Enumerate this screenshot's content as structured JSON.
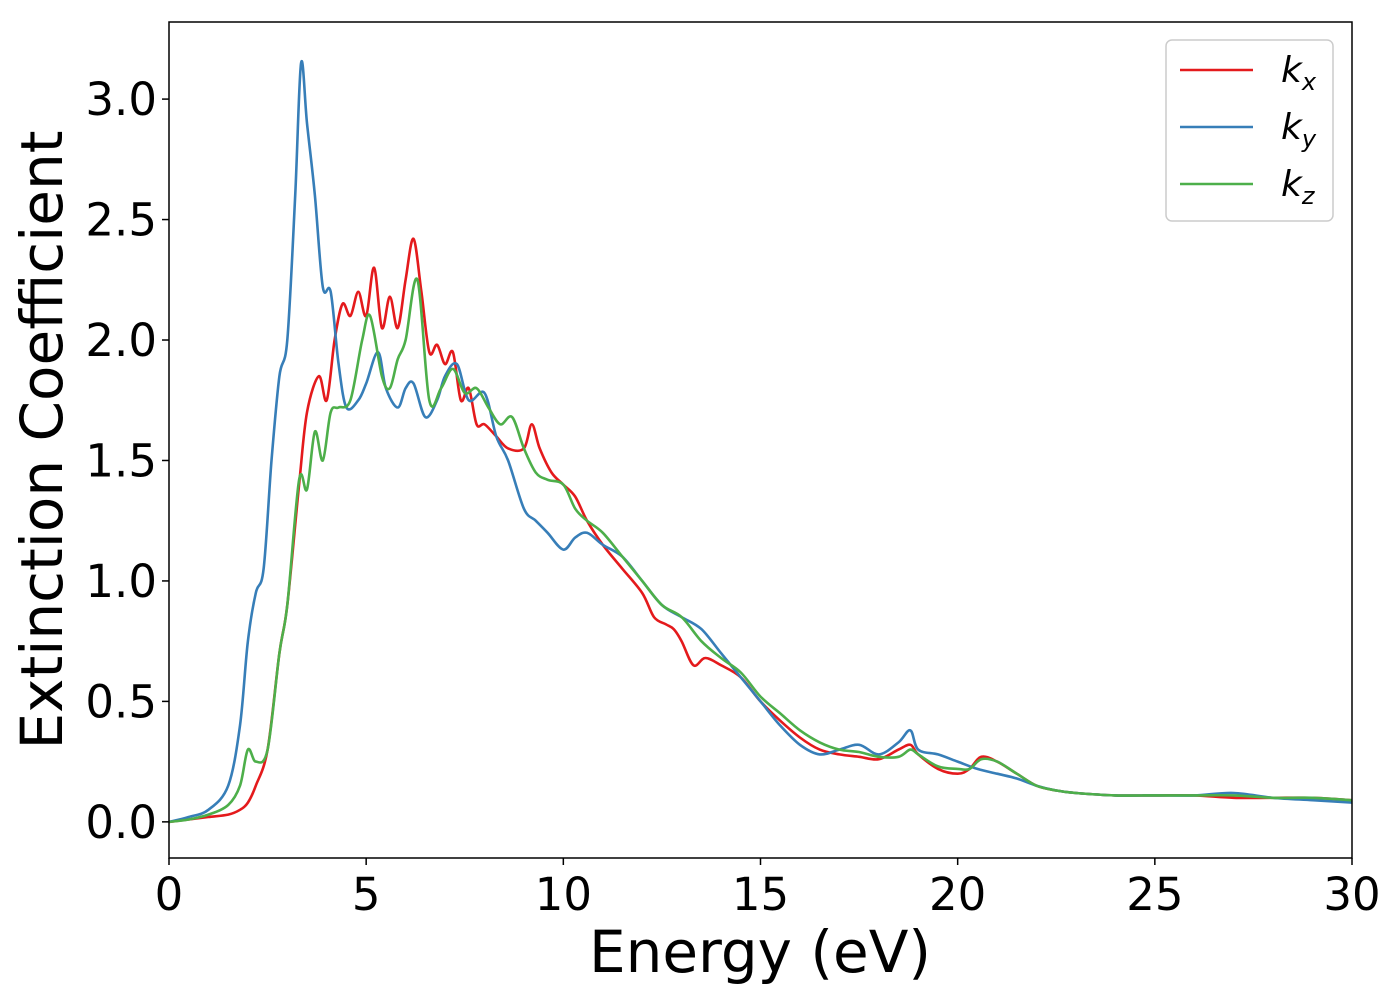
{
  "chart_data": {
    "type": "line",
    "xlabel": "Energy (eV)",
    "ylabel": "Extinction Coefficient",
    "xlim": [
      0,
      30
    ],
    "ylim": [
      -0.15,
      3.32
    ],
    "xticks": [
      0,
      5,
      10,
      15,
      20,
      25,
      30
    ],
    "xtick_labels": [
      "0",
      "5",
      "10",
      "15",
      "20",
      "25",
      "30"
    ],
    "yticks": [
      0.0,
      0.5,
      1.0,
      1.5,
      2.0,
      2.5,
      3.0
    ],
    "ytick_labels": [
      "0.0",
      "0.5",
      "1.0",
      "1.5",
      "2.0",
      "2.5",
      "3.0"
    ],
    "grid": false,
    "legend_position": "top-right",
    "series": [
      {
        "name": "k",
        "subscript": "x",
        "color": "#e41a1c",
        "x": [
          0,
          0.5,
          1.0,
          1.5,
          1.8,
          2.0,
          2.2,
          2.5,
          2.8,
          3.0,
          3.3,
          3.5,
          3.8,
          4.0,
          4.2,
          4.4,
          4.6,
          4.8,
          5.0,
          5.2,
          5.4,
          5.6,
          5.8,
          6.0,
          6.2,
          6.4,
          6.6,
          6.8,
          7.0,
          7.2,
          7.4,
          7.6,
          7.8,
          8.0,
          8.3,
          8.6,
          9.0,
          9.2,
          9.4,
          9.7,
          10.0,
          10.3,
          10.6,
          11.0,
          11.5,
          12.0,
          12.3,
          12.6,
          12.8,
          13.0,
          13.3,
          13.6,
          14.0,
          14.5,
          15.0,
          15.5,
          16.0,
          16.5,
          17.0,
          17.5,
          18.0,
          18.5,
          18.8,
          19.0,
          19.5,
          20.0,
          20.3,
          20.6,
          21.0,
          21.5,
          22.0,
          22.5,
          23.0,
          24.0,
          25.0,
          26.0,
          27.0,
          28.0,
          29.0,
          30.0
        ],
        "y": [
          0.0,
          0.01,
          0.02,
          0.03,
          0.05,
          0.08,
          0.15,
          0.3,
          0.7,
          0.9,
          1.4,
          1.7,
          1.85,
          1.75,
          2.0,
          2.15,
          2.1,
          2.2,
          2.1,
          2.3,
          2.05,
          2.18,
          2.05,
          2.25,
          2.42,
          2.2,
          1.95,
          1.98,
          1.9,
          1.95,
          1.75,
          1.8,
          1.65,
          1.65,
          1.6,
          1.55,
          1.55,
          1.65,
          1.55,
          1.45,
          1.4,
          1.35,
          1.25,
          1.15,
          1.05,
          0.95,
          0.85,
          0.82,
          0.8,
          0.75,
          0.65,
          0.68,
          0.65,
          0.6,
          0.5,
          0.42,
          0.35,
          0.3,
          0.28,
          0.27,
          0.26,
          0.3,
          0.32,
          0.28,
          0.22,
          0.2,
          0.22,
          0.27,
          0.25,
          0.2,
          0.15,
          0.13,
          0.12,
          0.11,
          0.11,
          0.11,
          0.1,
          0.1,
          0.1,
          0.09
        ]
      },
      {
        "name": "k",
        "subscript": "y",
        "color": "#377eb8",
        "x": [
          0,
          0.5,
          1.0,
          1.5,
          1.8,
          2.0,
          2.2,
          2.4,
          2.6,
          2.8,
          3.0,
          3.2,
          3.35,
          3.5,
          3.7,
          3.9,
          4.1,
          4.3,
          4.5,
          4.8,
          5.0,
          5.3,
          5.5,
          5.8,
          6.0,
          6.2,
          6.5,
          6.8,
          7.0,
          7.3,
          7.6,
          8.0,
          8.3,
          8.6,
          9.0,
          9.3,
          9.6,
          10.0,
          10.3,
          10.6,
          11.0,
          11.5,
          12.0,
          12.5,
          13.0,
          13.5,
          14.0,
          14.5,
          15.0,
          15.5,
          16.0,
          16.5,
          17.0,
          17.5,
          18.0,
          18.5,
          18.8,
          19.0,
          19.5,
          20.0,
          20.5,
          21.0,
          21.5,
          22.0,
          22.5,
          23.0,
          24.0,
          25.0,
          26.0,
          27.0,
          28.0,
          29.0,
          30.0
        ],
        "y": [
          0.0,
          0.02,
          0.05,
          0.15,
          0.4,
          0.75,
          0.95,
          1.05,
          1.5,
          1.85,
          2.0,
          2.6,
          3.15,
          2.9,
          2.6,
          2.22,
          2.2,
          1.9,
          1.72,
          1.75,
          1.82,
          1.95,
          1.8,
          1.72,
          1.8,
          1.82,
          1.68,
          1.75,
          1.85,
          1.9,
          1.75,
          1.78,
          1.6,
          1.5,
          1.3,
          1.25,
          1.2,
          1.13,
          1.18,
          1.2,
          1.15,
          1.1,
          1.0,
          0.9,
          0.85,
          0.8,
          0.7,
          0.6,
          0.5,
          0.4,
          0.32,
          0.28,
          0.3,
          0.32,
          0.28,
          0.33,
          0.38,
          0.3,
          0.28,
          0.25,
          0.22,
          0.2,
          0.18,
          0.15,
          0.13,
          0.12,
          0.11,
          0.11,
          0.11,
          0.12,
          0.1,
          0.09,
          0.08
        ]
      },
      {
        "name": "k",
        "subscript": "z",
        "color": "#4daf4a",
        "x": [
          0,
          0.5,
          1.0,
          1.5,
          1.8,
          2.0,
          2.2,
          2.5,
          2.8,
          3.0,
          3.3,
          3.5,
          3.7,
          3.9,
          4.1,
          4.3,
          4.6,
          4.9,
          5.1,
          5.4,
          5.6,
          5.8,
          6.0,
          6.3,
          6.6,
          6.9,
          7.2,
          7.5,
          7.8,
          8.1,
          8.4,
          8.7,
          9.0,
          9.3,
          9.6,
          10.0,
          10.3,
          10.6,
          11.0,
          11.5,
          12.0,
          12.5,
          13.0,
          13.5,
          14.0,
          14.5,
          15.0,
          15.5,
          16.0,
          16.5,
          17.0,
          17.5,
          18.0,
          18.5,
          18.8,
          19.0,
          19.5,
          20.0,
          20.3,
          20.6,
          21.0,
          21.5,
          22.0,
          22.5,
          23.0,
          24.0,
          25.0,
          26.0,
          27.0,
          28.0,
          29.0,
          30.0
        ],
        "y": [
          0.0,
          0.01,
          0.03,
          0.07,
          0.15,
          0.3,
          0.25,
          0.3,
          0.7,
          0.9,
          1.42,
          1.38,
          1.62,
          1.5,
          1.7,
          1.72,
          1.75,
          2.0,
          2.1,
          1.85,
          1.8,
          1.92,
          2.0,
          2.25,
          1.75,
          1.8,
          1.88,
          1.78,
          1.8,
          1.72,
          1.65,
          1.68,
          1.55,
          1.45,
          1.42,
          1.4,
          1.3,
          1.25,
          1.2,
          1.1,
          1.0,
          0.9,
          0.85,
          0.75,
          0.68,
          0.62,
          0.52,
          0.45,
          0.38,
          0.33,
          0.3,
          0.29,
          0.27,
          0.27,
          0.3,
          0.28,
          0.23,
          0.22,
          0.22,
          0.26,
          0.25,
          0.2,
          0.15,
          0.13,
          0.12,
          0.11,
          0.11,
          0.11,
          0.11,
          0.1,
          0.1,
          0.09
        ]
      }
    ]
  }
}
